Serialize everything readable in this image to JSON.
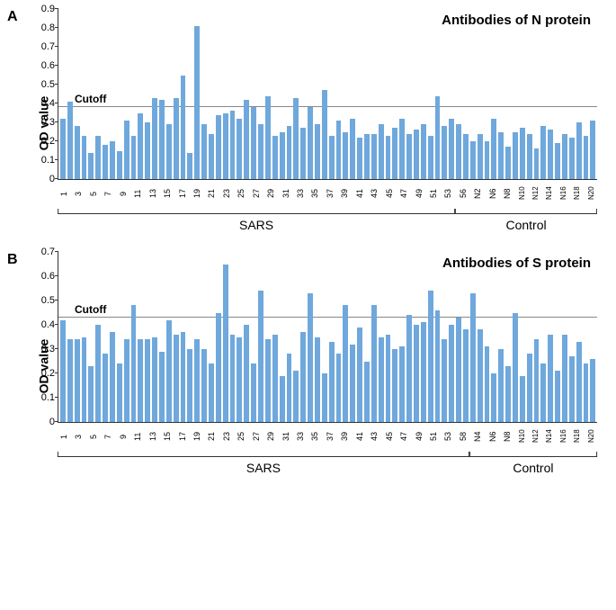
{
  "panelA": {
    "letter": "A",
    "title": "Antibodies of N protein",
    "ylabel": "OD value",
    "ymax": 0.9,
    "ytick_step": 0.1,
    "cutoff": 0.38,
    "cutoff_label": "Cutoff",
    "bar_color": "#6fa8dc",
    "background_color": "#ffffff",
    "gridline_color": "#888888",
    "axis_color": "#333333",
    "values": [
      0.32,
      0.41,
      0.28,
      0.23,
      0.14,
      0.23,
      0.18,
      0.2,
      0.15,
      0.31,
      0.23,
      0.35,
      0.3,
      0.43,
      0.42,
      0.29,
      0.43,
      0.55,
      0.14,
      0.81,
      0.29,
      0.24,
      0.34,
      0.35,
      0.36,
      0.32,
      0.42,
      0.38,
      0.29,
      0.44,
      0.23,
      0.25,
      0.28,
      0.43,
      0.27,
      0.38,
      0.29,
      0.47,
      0.23,
      0.31,
      0.25,
      0.32,
      0.22,
      0.24,
      0.24,
      0.29,
      0.23,
      0.27,
      0.32,
      0.24,
      0.26,
      0.29,
      0.23,
      0.44,
      0.28,
      0.32,
      0.29,
      0.24,
      0.2,
      0.24,
      0.2,
      0.32,
      0.25,
      0.17,
      0.25,
      0.27,
      0.24,
      0.16,
      0.28,
      0.26,
      0.19,
      0.24,
      0.22,
      0.3,
      0.23,
      0.31
    ],
    "categories": [
      "1",
      "",
      "3",
      "",
      "5",
      "",
      "7",
      "",
      "9",
      "",
      "11",
      "",
      "13",
      "",
      "15",
      "",
      "17",
      "",
      "19",
      "",
      "21",
      "",
      "23",
      "",
      "25",
      "",
      "27",
      "",
      "29",
      "",
      "31",
      "",
      "33",
      "",
      "35",
      "",
      "37",
      "",
      "39",
      "",
      "41",
      "",
      "43",
      "",
      "45",
      "",
      "47",
      "",
      "49",
      "",
      "51",
      "",
      "53",
      "",
      "56",
      "",
      "N2",
      "",
      "N6",
      "",
      "N8",
      "",
      "N10",
      "",
      "N12",
      "",
      "N14",
      "",
      "N16",
      "",
      "N18",
      "",
      "N20"
    ],
    "groups": [
      {
        "label": "SARS",
        "start": 0,
        "end": 55
      },
      {
        "label": "Control",
        "start": 56,
        "end": 75
      }
    ]
  },
  "panelB": {
    "letter": "B",
    "title": "Antibodies of S protein",
    "ylabel": "OD value",
    "ymax": 0.7,
    "ytick_step": 0.1,
    "cutoff": 0.43,
    "cutoff_label": "Cutoff",
    "bar_color": "#6fa8dc",
    "background_color": "#ffffff",
    "gridline_color": "#888888",
    "axis_color": "#333333",
    "values": [
      0.42,
      0.34,
      0.34,
      0.35,
      0.23,
      0.4,
      0.28,
      0.37,
      0.24,
      0.34,
      0.48,
      0.34,
      0.34,
      0.35,
      0.29,
      0.42,
      0.36,
      0.37,
      0.3,
      0.34,
      0.3,
      0.24,
      0.45,
      0.65,
      0.36,
      0.35,
      0.4,
      0.24,
      0.54,
      0.34,
      0.36,
      0.19,
      0.28,
      0.21,
      0.37,
      0.53,
      0.35,
      0.2,
      0.33,
      0.28,
      0.48,
      0.32,
      0.39,
      0.25,
      0.48,
      0.35,
      0.36,
      0.3,
      0.31,
      0.44,
      0.4,
      0.41,
      0.54,
      0.46,
      0.34,
      0.4,
      0.43,
      0.38,
      0.53,
      0.38,
      0.31,
      0.2,
      0.3,
      0.23,
      0.45,
      0.19,
      0.28,
      0.34,
      0.24,
      0.36,
      0.21,
      0.36,
      0.27,
      0.33,
      0.24,
      0.26
    ],
    "categories": [
      "1",
      "",
      "3",
      "",
      "5",
      "",
      "7",
      "",
      "9",
      "",
      "11",
      "",
      "13",
      "",
      "15",
      "",
      "17",
      "",
      "19",
      "",
      "21",
      "",
      "23",
      "",
      "25",
      "",
      "27",
      "",
      "29",
      "",
      "31",
      "",
      "33",
      "",
      "35",
      "",
      "37",
      "",
      "39",
      "",
      "41",
      "",
      "43",
      "",
      "45",
      "",
      "47",
      "",
      "49",
      "",
      "51",
      "",
      "53",
      "",
      "58",
      "",
      "N4",
      "",
      "N6",
      "",
      "N8",
      "",
      "N10",
      "",
      "N12",
      "",
      "N14",
      "",
      "N16",
      "",
      "N18",
      "",
      "N20"
    ],
    "groups": [
      {
        "label": "SARS",
        "start": 0,
        "end": 57
      },
      {
        "label": "Control",
        "start": 58,
        "end": 75
      }
    ]
  }
}
